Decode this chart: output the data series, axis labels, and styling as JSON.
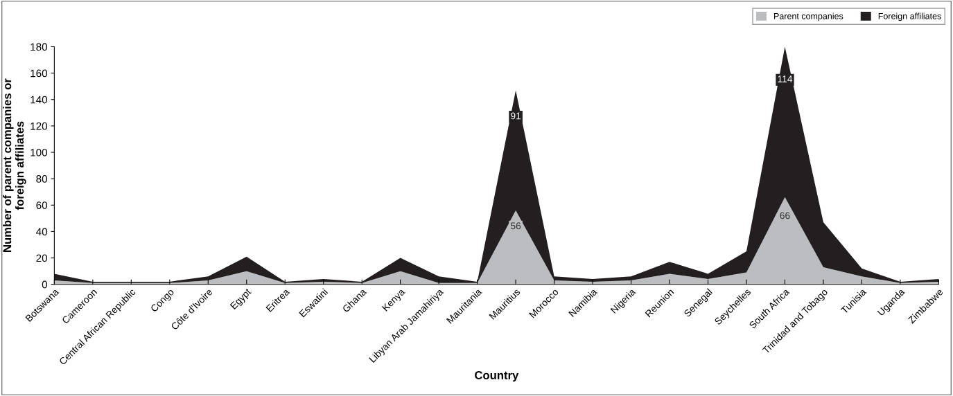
{
  "chart_data": {
    "type": "area",
    "stacked": true,
    "xlabel": "Country",
    "ylabel": "Number of parent companies or\nforeign affiliates",
    "categories": [
      "Botswana",
      "Cameroon",
      "Central African Republic",
      "Congo",
      "Côte d'Ivoire",
      "Egypt",
      "Eritrea",
      "Eswatini",
      "Ghana",
      "Kenya",
      "Libyan Arab Jamahiriya",
      "Mauritania",
      "Mauritius",
      "Morocco",
      "Namibia",
      "Nigeria",
      "Reunion",
      "Senegal",
      "Seychelles",
      "South Africa",
      "Trinidad and Tobago",
      "Tunisia",
      "Uganda",
      "Zimbabwe"
    ],
    "series": [
      {
        "name": "Parent companies",
        "color": "#bcbdc0",
        "values": [
          3,
          1,
          1,
          1,
          3,
          10,
          1,
          2,
          1,
          10,
          1,
          1,
          56,
          3,
          2,
          3,
          8,
          4,
          9,
          66,
          13,
          6,
          1,
          2
        ],
        "value_labels": [
          null,
          null,
          null,
          null,
          null,
          null,
          null,
          null,
          null,
          null,
          null,
          null,
          "56",
          null,
          null,
          null,
          null,
          null,
          null,
          "66",
          null,
          null,
          null,
          null
        ]
      },
      {
        "name": "Foreign affiliates",
        "color": "#231f20",
        "values": [
          5,
          1,
          1,
          1,
          3,
          11,
          1,
          2,
          1,
          10,
          5,
          1,
          91,
          3,
          2,
          3,
          9,
          4,
          16,
          114,
          34,
          6,
          1,
          2
        ],
        "value_labels": [
          null,
          null,
          null,
          null,
          null,
          null,
          null,
          null,
          null,
          null,
          null,
          null,
          "91",
          null,
          null,
          null,
          null,
          null,
          null,
          "114",
          null,
          null,
          null,
          null
        ]
      }
    ],
    "ylim": [
      0,
      180
    ],
    "yticks": [
      0,
      20,
      40,
      60,
      80,
      100,
      120,
      140,
      160,
      180
    ],
    "grid": false,
    "legend": "top right"
  }
}
